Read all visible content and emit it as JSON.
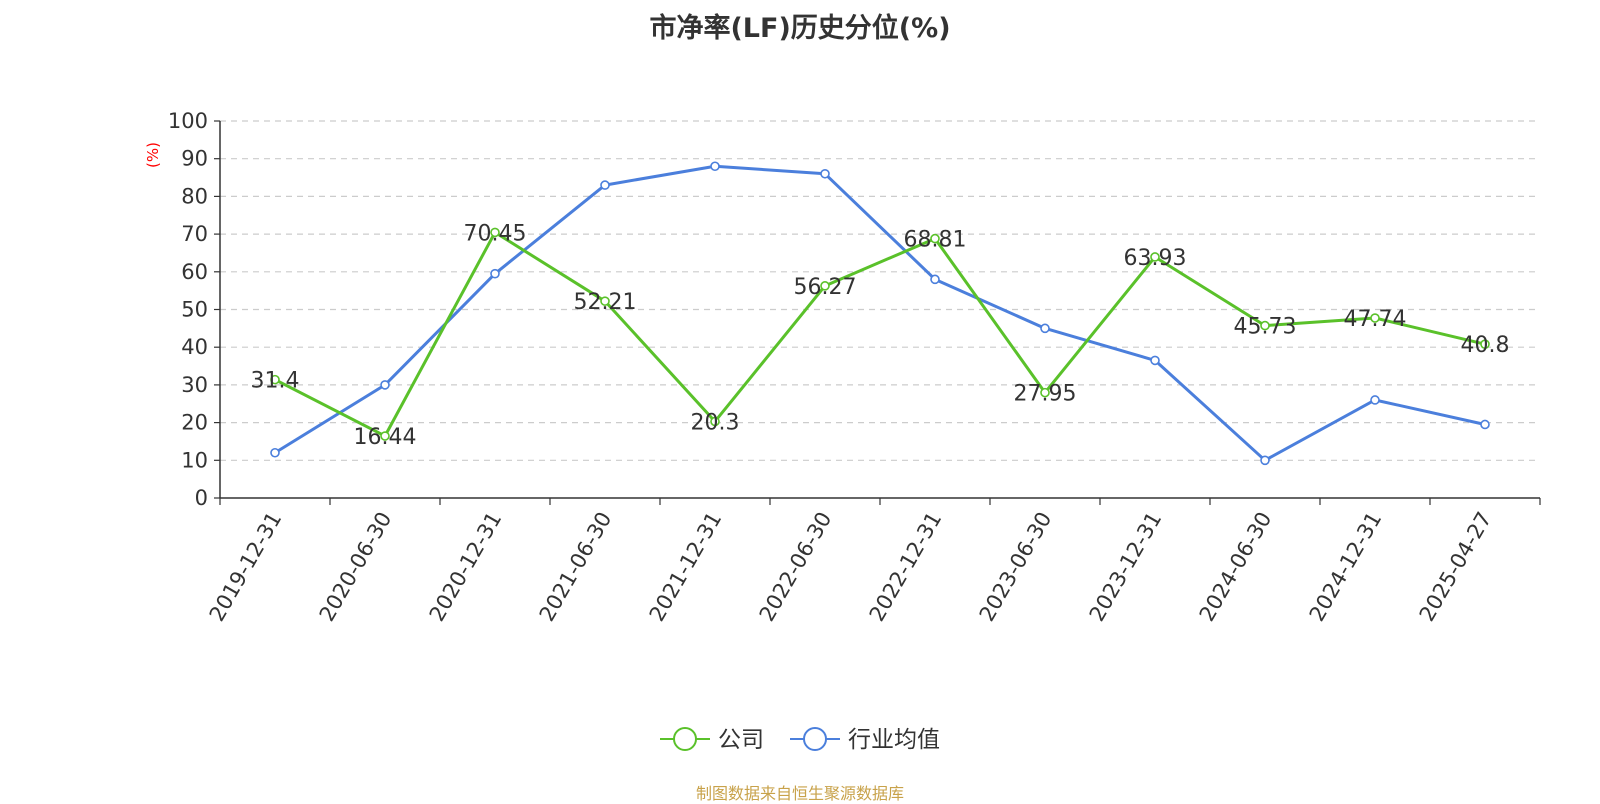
{
  "chart_data": {
    "type": "line",
    "title": "市净率(LF)历史分位(%)",
    "ylabel": "(%)",
    "ylim": [
      0,
      100
    ],
    "yticks": [
      0,
      10,
      20,
      30,
      40,
      50,
      60,
      70,
      80,
      90,
      100
    ],
    "categories": [
      "2019-12-31",
      "2020-06-30",
      "2020-12-31",
      "2021-06-30",
      "2021-12-31",
      "2022-06-30",
      "2022-12-31",
      "2023-06-30",
      "2023-12-31",
      "2024-06-30",
      "2024-12-31",
      "2025-04-27"
    ],
    "series": [
      {
        "name": "公司",
        "color": "#5ac12a",
        "values": [
          31.4,
          16.44,
          70.45,
          52.21,
          20.3,
          56.27,
          68.81,
          27.95,
          63.93,
          45.73,
          47.74,
          40.8
        ],
        "labels": [
          "31.4",
          "16.44",
          "70.45",
          "52.21",
          "20.3",
          "56.27",
          "68.81",
          "27.95",
          "63.93",
          "45.73",
          "47.74",
          "40.8"
        ]
      },
      {
        "name": "行业均值",
        "color": "#4b7fdc",
        "values": [
          12,
          30,
          59.5,
          83,
          88,
          86,
          58,
          45,
          36.5,
          10,
          26,
          19.5
        ]
      }
    ],
    "grid": true,
    "legend_position": "bottom-center",
    "label_color": "#333333",
    "axis_label_color": "#ff0000"
  },
  "footer": {
    "source": "制图数据来自恒生聚源数据库"
  }
}
